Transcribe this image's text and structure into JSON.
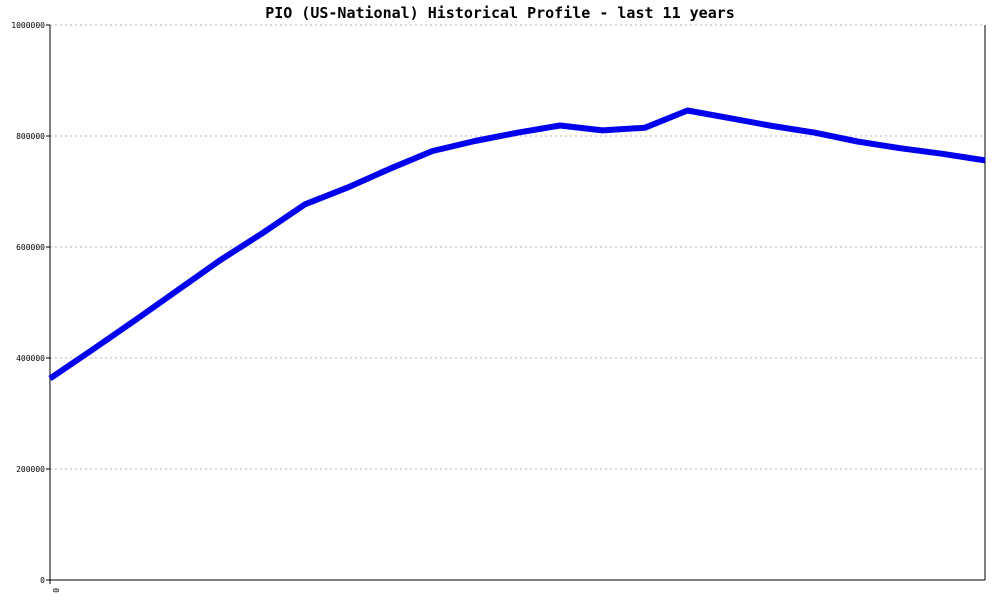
{
  "chart_data": {
    "type": "line",
    "title": "PIO (US-National) Historical Profile - last 11 years",
    "xlabel": "",
    "ylabel": "",
    "x": [
      0,
      1,
      2,
      3,
      4,
      5,
      6,
      7,
      8,
      9,
      10,
      11,
      12,
      13,
      14,
      15,
      16,
      17,
      18,
      19,
      20,
      21,
      22
    ],
    "x_tick_labels": [
      "0"
    ],
    "ylim": [
      0,
      1000000
    ],
    "y_ticks": [
      0,
      200000,
      400000,
      600000,
      800000,
      1000000
    ],
    "y_tick_labels": [
      "0",
      "200000",
      "400000",
      "600000",
      "800000",
      "1000000"
    ],
    "grid": true,
    "series": [
      {
        "color": "#0000ee",
        "values": [
          363000,
          415000,
          468000,
          522000,
          576000,
          625000,
          677000,
          707000,
          741000,
          773000,
          791000,
          806000,
          819000,
          810000,
          815000,
          846000,
          832000,
          818000,
          806000,
          790000,
          778000,
          768000,
          756000
        ]
      }
    ]
  }
}
